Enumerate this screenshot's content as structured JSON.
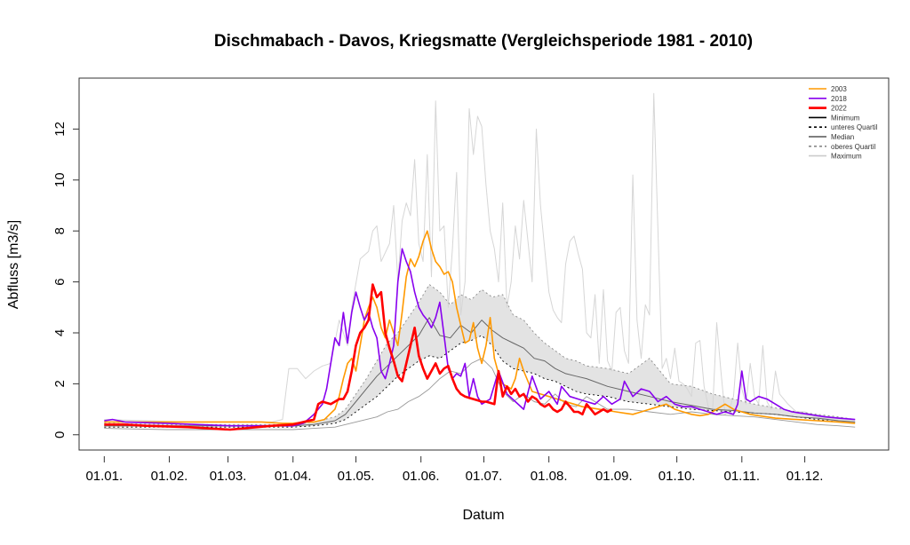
{
  "chart_data": {
    "type": "line",
    "title": "Dischmabach - Davos, Kriegsmatte (Vergleichsperiode 1981 - 2010)",
    "xlabel": "Datum",
    "ylabel": "Abfluss [m3/s]",
    "x_unit": "day_of_year",
    "xlim": [
      -12,
      374
    ],
    "ylim": [
      -0.6,
      14
    ],
    "yticks": [
      0,
      2,
      4,
      6,
      8,
      10,
      12
    ],
    "xtick_days": [
      0,
      31,
      59,
      90,
      120,
      151,
      181,
      212,
      243,
      273,
      304,
      334
    ],
    "xtick_labels": [
      "01.01.",
      "01.02.",
      "01.03.",
      "01.04.",
      "01.05.",
      "01.06.",
      "01.07.",
      "01.08.",
      "01.09.",
      "01.10.",
      "01.11.",
      "01.12."
    ],
    "grid": false,
    "legend_position": "top-right",
    "legend": [
      {
        "label": "2003",
        "color": "#FF9900",
        "style": "solid"
      },
      {
        "label": "2018",
        "color": "#8800EE",
        "style": "solid"
      },
      {
        "label": "2022",
        "color": "#FF0000",
        "style": "solid-thick"
      },
      {
        "label": "Minimum",
        "color": "#000000",
        "style": "solid"
      },
      {
        "label": "unteres Quartil",
        "color": "#000000",
        "style": "dashed"
      },
      {
        "label": "Median",
        "color": "#555555",
        "style": "solid"
      },
      {
        "label": "oberes Quartil",
        "color": "#888888",
        "style": "dashed"
      },
      {
        "label": "Maximum",
        "color": "#CCCCCC",
        "style": "solid"
      }
    ],
    "band": {
      "name": "Interquartile range",
      "color": "#E3E3E3"
    },
    "series": [
      {
        "name": "Maximum",
        "color": "#D6D6D6",
        "width": 1,
        "dash": "",
        "x": [
          0,
          20,
          40,
          60,
          80,
          85,
          88,
          92,
          96,
          100,
          104,
          108,
          112,
          116,
          118,
          122,
          126,
          128,
          130,
          132,
          136,
          138,
          140,
          142,
          144,
          146,
          148,
          150,
          152,
          154,
          156,
          158,
          160,
          162,
          164,
          166,
          168,
          170,
          172,
          174,
          176,
          178,
          180,
          182,
          184,
          186,
          188,
          190,
          192,
          194,
          196,
          198,
          200,
          202,
          204,
          206,
          208,
          210,
          212,
          214,
          216,
          218,
          220,
          222,
          224,
          226,
          228,
          230,
          232,
          234,
          236,
          238,
          240,
          242,
          244,
          246,
          248,
          250,
          252,
          254,
          256,
          258,
          260,
          262,
          264,
          266,
          268,
          270,
          272,
          274,
          276,
          278,
          280,
          282,
          284,
          286,
          288,
          290,
          292,
          294,
          296,
          298,
          300,
          302,
          304,
          306,
          308,
          310,
          312,
          314,
          316,
          318,
          320,
          322,
          326,
          330,
          334,
          340,
          350,
          358
        ],
        "y": [
          0.6,
          0.55,
          0.5,
          0.5,
          0.5,
          0.6,
          2.6,
          2.6,
          2.2,
          2.5,
          2.7,
          2.8,
          4.5,
          3.5,
          5.0,
          6.9,
          7.2,
          8.0,
          8.2,
          6.8,
          7.5,
          9.0,
          6.0,
          8.4,
          9.1,
          8.6,
          10.8,
          7.5,
          6.8,
          11.0,
          6.2,
          13.1,
          8.0,
          8.2,
          5.0,
          7.3,
          10.3,
          4.7,
          6.0,
          12.8,
          11.0,
          12.5,
          12.1,
          9.8,
          8.0,
          7.3,
          6.0,
          9.1,
          5.0,
          6.0,
          8.2,
          6.9,
          9.2,
          7.6,
          6.0,
          12.0,
          9.0,
          7.3,
          5.6,
          4.9,
          4.6,
          4.4,
          6.7,
          7.6,
          7.8,
          7.1,
          6.5,
          4.0,
          3.8,
          5.5,
          2.8,
          5.7,
          2.9,
          2.5,
          4.8,
          5.0,
          3.3,
          2.8,
          10.2,
          4.5,
          3.0,
          5.1,
          4.7,
          13.4,
          8.0,
          2.6,
          3.0,
          2.2,
          3.4,
          2.1,
          2.0,
          1.8,
          1.5,
          3.6,
          3.7,
          1.9,
          1.1,
          0.9,
          4.4,
          2.5,
          0.8,
          1.0,
          1.5,
          3.6,
          1.8,
          1.2,
          2.8,
          1.5,
          1.2,
          3.5,
          1.3,
          1.0,
          2.5,
          1.6,
          1.2,
          0.9,
          0.9,
          0.7,
          0.55,
          0.5
        ]
      },
      {
        "name": "Minimum",
        "color": "#999999",
        "width": 0.9,
        "dash": "",
        "x": [
          0,
          30,
          60,
          90,
          100,
          110,
          115,
          120,
          125,
          130,
          135,
          140,
          145,
          150,
          155,
          160,
          165,
          170,
          175,
          180,
          185,
          190,
          195,
          200,
          205,
          210,
          215,
          220,
          225,
          230,
          240,
          250,
          260,
          270,
          280,
          290,
          300,
          310,
          320,
          330,
          340,
          350,
          358
        ],
        "y": [
          0.25,
          0.2,
          0.2,
          0.2,
          0.25,
          0.3,
          0.4,
          0.5,
          0.6,
          0.7,
          0.9,
          1.0,
          1.3,
          1.5,
          1.8,
          2.2,
          2.5,
          2.4,
          2.8,
          3.0,
          2.6,
          1.7,
          1.3,
          1.6,
          1.3,
          1.2,
          1.6,
          1.2,
          1.1,
          1.5,
          1.0,
          1.0,
          0.9,
          0.8,
          0.9,
          0.8,
          0.75,
          0.7,
          0.6,
          0.5,
          0.4,
          0.35,
          0.3
        ]
      },
      {
        "name": "unteres Quartil",
        "color": "#000000",
        "width": 0.9,
        "dash": "2,3",
        "x": [
          0,
          30,
          60,
          90,
          100,
          110,
          115,
          120,
          125,
          130,
          135,
          140,
          145,
          150,
          155,
          160,
          165,
          170,
          175,
          180,
          185,
          190,
          195,
          200,
          205,
          210,
          215,
          220,
          225,
          230,
          240,
          250,
          260,
          270,
          280,
          290,
          300,
          310,
          320,
          330,
          340,
          350,
          358
        ],
        "y": [
          0.3,
          0.3,
          0.3,
          0.3,
          0.35,
          0.45,
          0.6,
          0.9,
          1.2,
          1.5,
          1.9,
          2.3,
          2.6,
          2.9,
          3.1,
          3.0,
          3.3,
          3.6,
          3.7,
          3.9,
          3.5,
          2.9,
          2.6,
          2.5,
          2.4,
          2.2,
          2.1,
          1.9,
          1.7,
          1.6,
          1.5,
          1.3,
          1.2,
          1.1,
          1.0,
          0.95,
          0.9,
          0.85,
          0.8,
          0.7,
          0.6,
          0.5,
          0.45
        ]
      },
      {
        "name": "oberes Quartil",
        "color": "#888888",
        "width": 0.9,
        "dash": "2,3",
        "x": [
          0,
          30,
          60,
          90,
          100,
          110,
          115,
          120,
          125,
          130,
          135,
          140,
          145,
          150,
          155,
          160,
          165,
          170,
          175,
          180,
          185,
          190,
          195,
          200,
          205,
          210,
          215,
          220,
          225,
          230,
          240,
          250,
          260,
          270,
          280,
          290,
          300,
          310,
          320,
          330,
          340,
          350,
          358
        ],
        "y": [
          0.45,
          0.4,
          0.4,
          0.4,
          0.5,
          0.7,
          1.0,
          1.6,
          2.2,
          2.9,
          3.6,
          4.0,
          4.6,
          5.2,
          5.9,
          5.6,
          5.1,
          5.5,
          5.3,
          5.7,
          5.4,
          5.5,
          4.7,
          4.5,
          4.0,
          3.6,
          3.3,
          3.0,
          2.9,
          2.7,
          2.6,
          2.4,
          3.0,
          2.0,
          1.9,
          1.6,
          1.4,
          1.2,
          1.05,
          0.9,
          0.8,
          0.7,
          0.6
        ]
      },
      {
        "name": "Median",
        "color": "#666666",
        "width": 1,
        "dash": "",
        "x": [
          0,
          30,
          60,
          90,
          100,
          110,
          115,
          120,
          125,
          130,
          135,
          140,
          145,
          150,
          155,
          160,
          165,
          170,
          175,
          180,
          185,
          190,
          195,
          200,
          205,
          210,
          215,
          220,
          225,
          230,
          240,
          250,
          260,
          270,
          280,
          290,
          300,
          310,
          320,
          330,
          340,
          350,
          358
        ],
        "y": [
          0.35,
          0.35,
          0.35,
          0.35,
          0.4,
          0.55,
          0.8,
          1.3,
          1.8,
          2.3,
          2.7,
          3.1,
          3.5,
          3.9,
          4.6,
          3.9,
          3.8,
          4.3,
          4.0,
          4.5,
          4.1,
          3.8,
          3.6,
          3.4,
          3.0,
          2.9,
          2.6,
          2.4,
          2.3,
          2.2,
          1.9,
          1.7,
          1.5,
          1.3,
          1.15,
          1.0,
          0.95,
          0.85,
          0.8,
          0.7,
          0.65,
          0.55,
          0.5
        ]
      },
      {
        "name": "2003",
        "color": "#FF9900",
        "width": 1.6,
        "dash": "",
        "x": [
          0,
          20,
          40,
          60,
          75,
          85,
          90,
          95,
          100,
          105,
          110,
          112,
          114,
          116,
          118,
          120,
          122,
          124,
          126,
          128,
          130,
          132,
          134,
          136,
          138,
          140,
          142,
          144,
          146,
          148,
          150,
          152,
          154,
          156,
          158,
          160,
          162,
          164,
          166,
          168,
          170,
          172,
          174,
          176,
          178,
          180,
          182,
          184,
          186,
          188,
          190,
          192,
          194,
          196,
          198,
          200,
          204,
          208,
          212,
          216,
          220,
          224,
          228,
          232,
          236,
          240,
          244,
          248,
          252,
          256,
          260,
          264,
          268,
          272,
          276,
          280,
          284,
          288,
          292,
          296,
          300,
          304,
          308,
          312,
          316,
          320,
          330,
          340,
          350,
          358
        ],
        "y": [
          0.5,
          0.5,
          0.5,
          0.5,
          0.5,
          0.45,
          0.45,
          0.5,
          0.5,
          0.6,
          1.0,
          1.5,
          2.2,
          2.8,
          3.0,
          2.5,
          3.5,
          4.5,
          5.0,
          5.4,
          5.0,
          4.2,
          3.8,
          4.5,
          4.0,
          3.5,
          4.8,
          6.2,
          6.9,
          6.6,
          7.0,
          7.6,
          8.0,
          7.3,
          6.8,
          6.6,
          6.3,
          6.4,
          6.0,
          5.0,
          4.3,
          3.6,
          3.7,
          4.4,
          3.4,
          2.8,
          3.5,
          4.6,
          3.0,
          2.4,
          2.0,
          1.9,
          1.8,
          2.2,
          3.0,
          2.5,
          1.7,
          1.6,
          1.5,
          1.4,
          1.3,
          1.2,
          1.1,
          1.05,
          1.0,
          0.95,
          0.9,
          0.85,
          0.8,
          0.9,
          1.0,
          1.1,
          1.2,
          1.0,
          0.9,
          0.8,
          0.75,
          0.8,
          1.0,
          1.2,
          1.0,
          0.9,
          0.8,
          0.75,
          0.7,
          0.65,
          0.6,
          0.55,
          0.5,
          0.45
        ]
      },
      {
        "name": "2018",
        "color": "#8800EE",
        "width": 1.6,
        "dash": "",
        "x": [
          0,
          4,
          10,
          30,
          60,
          90,
          95,
          100,
          104,
          106,
          108,
          110,
          112,
          114,
          116,
          118,
          120,
          122,
          124,
          126,
          128,
          130,
          132,
          134,
          136,
          138,
          140,
          142,
          144,
          146,
          148,
          150,
          152,
          154,
          156,
          158,
          160,
          162,
          164,
          166,
          168,
          170,
          172,
          174,
          176,
          178,
          180,
          184,
          188,
          192,
          196,
          200,
          204,
          208,
          212,
          216,
          218,
          222,
          226,
          230,
          234,
          238,
          242,
          246,
          248,
          252,
          256,
          260,
          264,
          268,
          272,
          276,
          280,
          284,
          288,
          292,
          296,
          300,
          302,
          304,
          306,
          308,
          312,
          316,
          320,
          324,
          328,
          332,
          336,
          340,
          344,
          350,
          358
        ],
        "y": [
          0.55,
          0.6,
          0.5,
          0.45,
          0.35,
          0.35,
          0.45,
          0.8,
          1.2,
          1.8,
          2.8,
          3.8,
          3.5,
          4.8,
          3.6,
          4.8,
          5.6,
          5.0,
          4.5,
          4.8,
          4.2,
          3.8,
          2.5,
          2.2,
          2.8,
          3.5,
          6.0,
          7.3,
          6.8,
          6.4,
          5.6,
          5.0,
          4.7,
          4.5,
          4.2,
          4.6,
          5.2,
          3.9,
          2.6,
          2.2,
          2.4,
          2.3,
          2.8,
          1.5,
          2.2,
          1.5,
          1.2,
          1.4,
          2.5,
          1.6,
          1.3,
          1.0,
          2.3,
          1.4,
          1.7,
          1.2,
          1.9,
          1.5,
          1.4,
          1.3,
          1.2,
          1.5,
          1.2,
          1.4,
          2.1,
          1.5,
          1.8,
          1.7,
          1.3,
          1.5,
          1.2,
          1.1,
          1.1,
          1.0,
          0.9,
          0.8,
          0.9,
          0.8,
          1.2,
          2.5,
          1.4,
          1.3,
          1.5,
          1.4,
          1.2,
          1.0,
          0.9,
          0.85,
          0.8,
          0.75,
          0.7,
          0.65,
          0.6
        ]
      },
      {
        "name": "2022",
        "color": "#FF0000",
        "width": 2.6,
        "dash": "",
        "x": [
          0,
          10,
          20,
          40,
          60,
          80,
          90,
          95,
          100,
          102,
          104,
          106,
          108,
          110,
          112,
          114,
          116,
          118,
          120,
          122,
          124,
          126,
          128,
          130,
          132,
          134,
          136,
          138,
          140,
          142,
          144,
          146,
          148,
          150,
          152,
          154,
          156,
          158,
          160,
          162,
          164,
          166,
          168,
          170,
          172,
          174,
          176,
          178,
          180,
          182,
          184,
          186,
          188,
          190,
          192,
          194,
          196,
          198,
          200,
          202,
          204,
          206,
          208,
          210,
          212,
          214,
          216,
          218,
          220,
          222,
          224,
          226,
          228,
          230,
          232,
          234,
          236,
          238,
          240,
          242
        ],
        "y": [
          0.4,
          0.4,
          0.35,
          0.3,
          0.2,
          0.35,
          0.4,
          0.5,
          0.6,
          1.2,
          1.3,
          1.25,
          1.2,
          1.3,
          1.4,
          1.4,
          1.7,
          2.5,
          3.5,
          4.0,
          4.2,
          4.5,
          5.9,
          5.4,
          5.6,
          4.0,
          3.4,
          2.9,
          2.3,
          2.1,
          2.8,
          3.5,
          4.2,
          3.1,
          2.6,
          2.2,
          2.5,
          2.8,
          2.4,
          2.6,
          2.7,
          2.2,
          1.8,
          1.6,
          1.5,
          1.45,
          1.4,
          1.35,
          1.3,
          1.3,
          1.25,
          1.2,
          2.5,
          1.5,
          1.9,
          1.6,
          1.8,
          1.5,
          1.6,
          1.3,
          1.5,
          1.4,
          1.2,
          1.1,
          1.2,
          1.0,
          0.9,
          1.0,
          1.3,
          1.1,
          0.9,
          0.9,
          0.8,
          1.2,
          1.0,
          0.8,
          0.9,
          1.0,
          0.9,
          1.0
        ]
      }
    ]
  }
}
